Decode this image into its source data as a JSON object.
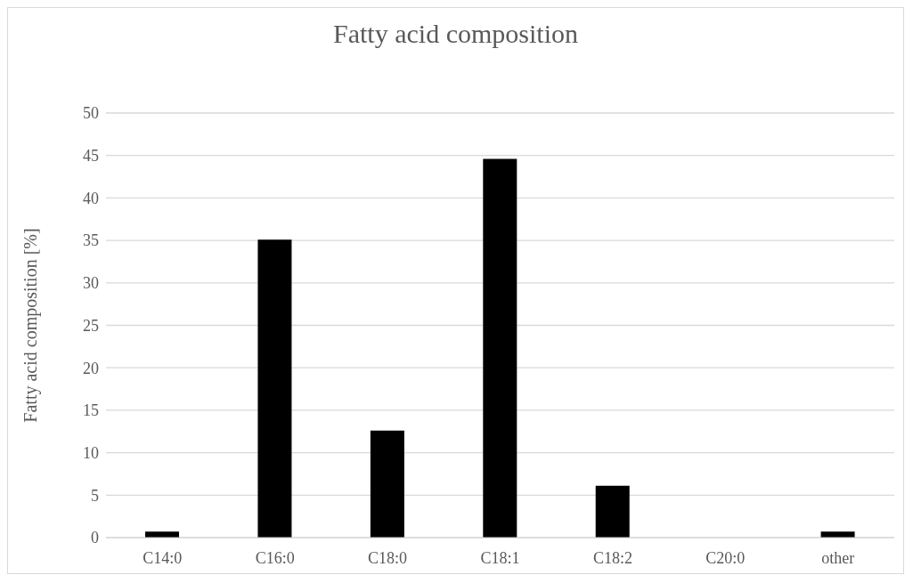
{
  "chart_data": {
    "type": "bar",
    "title": "Fatty acid composition",
    "ylabel": "Fatty acid composition [%]",
    "categories": [
      "C14:0",
      "C16:0",
      "C18:0",
      "C18:1",
      "C18:2",
      "C20:0",
      "other"
    ],
    "values": [
      0.7,
      35.1,
      12.6,
      44.6,
      6.1,
      0,
      0.7
    ],
    "color": "#000000",
    "ylim": [
      0,
      50
    ],
    "yticks": [
      0,
      5,
      10,
      15,
      20,
      25,
      30,
      35,
      40,
      45,
      50
    ],
    "grid": "y"
  }
}
